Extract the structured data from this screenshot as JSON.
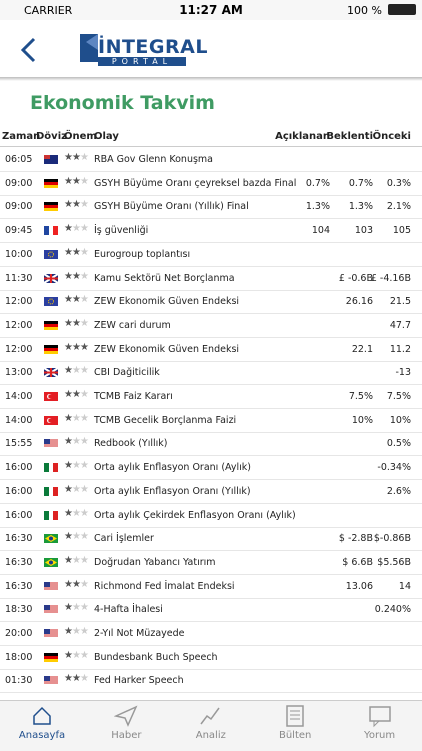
{
  "status": {
    "carrier": "CARRIER",
    "time": "11:27 AM",
    "battery": "100 %"
  },
  "header": {
    "logo": "İNTEGRAL",
    "logo_sub": "PORTAL"
  },
  "title": "Ekonomik Takvim",
  "columns": [
    "Zaman",
    "Döviz",
    "Önem",
    "Olay",
    "Açıklanan",
    "Beklenti",
    "Önceki"
  ],
  "rows": [
    {
      "time": "06:05",
      "stars": 2,
      "event": "RBA Gov Glenn Konuşma"
    },
    {
      "time": "09:00",
      "stars": 2,
      "event": "GSYH Büyüme Oranı çeyreksel bazda Final",
      "actual": "0.7%",
      "forecast": "0.7%",
      "previous": "0.3%"
    },
    {
      "time": "09:00",
      "stars": 2,
      "event": "GSYH Büyüme Oranı (Yıllık) Final",
      "actual": "1.3%",
      "forecast": "1.3%",
      "previous": "2.1%"
    },
    {
      "time": "09:45",
      "stars": 1,
      "event": "İş güvenliği",
      "actual": "104",
      "forecast": "103",
      "previous": "105"
    },
    {
      "time": "10:00",
      "stars": 2,
      "event": "Eurogroup toplantısı"
    },
    {
      "time": "11:30",
      "stars": 2,
      "event": "Kamu Sektörü Net Borçlanma",
      "forecast": "£ -0.6B",
      "previous": "£ -4.16B"
    },
    {
      "time": "12:00",
      "stars": 2,
      "event": "ZEW Ekonomik Güven Endeksi",
      "forecast": "26.16",
      "previous": "21.5"
    },
    {
      "time": "12:00",
      "stars": 2,
      "event": "ZEW cari durum",
      "previous": "47.7"
    },
    {
      "time": "12:00",
      "stars": 3,
      "event": "ZEW Ekonomik Güven Endeksi",
      "forecast": "22.1",
      "previous": "11.2"
    },
    {
      "time": "13:00",
      "stars": 1,
      "event": "CBI Dağiticilik",
      "previous": "-13"
    },
    {
      "time": "14:00",
      "stars": 2,
      "event": "TCMB Faiz Kararı",
      "forecast": "7.5%",
      "previous": "7.5%"
    },
    {
      "time": "14:00",
      "stars": 1,
      "event": "TCMB Gecelik Borçlanma Faizi",
      "forecast": "10%",
      "previous": "10%"
    },
    {
      "time": "15:55",
      "stars": 1,
      "event": "Redbook (Yıllık)",
      "previous": "0.5%"
    },
    {
      "time": "16:00",
      "stars": 1,
      "event": "Orta aylık Enflasyon Oranı (Aylık)",
      "previous": "-0.34%"
    },
    {
      "time": "16:00",
      "stars": 1,
      "event": "Orta aylık Enflasyon Oranı (Yıllık)",
      "previous": "2.6%"
    },
    {
      "time": "16:00",
      "stars": 1,
      "event": "Orta aylık Çekirdek Enflasyon Oranı (Aylık)"
    },
    {
      "time": "16:30",
      "stars": 1,
      "event": "Cari İşlemler",
      "forecast": "$ -2.8B",
      "previous": "$-0.86B"
    },
    {
      "time": "16:30",
      "stars": 1,
      "event": "Doğrudan Yabancı Yatırım",
      "forecast": "$ 6.6B",
      "previous": "$5.56B"
    },
    {
      "time": "16:30",
      "stars": 2,
      "event": "Richmond Fed İmalat Endeksi",
      "forecast": "13.06",
      "previous": "14"
    },
    {
      "time": "18:30",
      "stars": 1,
      "event": "4-Hafta İhalesi",
      "previous": "0.240%"
    },
    {
      "time": "20:00",
      "stars": 1,
      "event": "2-Yıl Not Müzayede"
    },
    {
      "time": "18:00",
      "stars": 1,
      "event": "Bundesbank Buch Speech"
    },
    {
      "time": "01:30",
      "stars": 2,
      "event": "Fed Harker Speech"
    }
  ],
  "tabs": [
    "Anasayfa",
    "Haber",
    "Analiz",
    "Bülten",
    "Yorum"
  ]
}
